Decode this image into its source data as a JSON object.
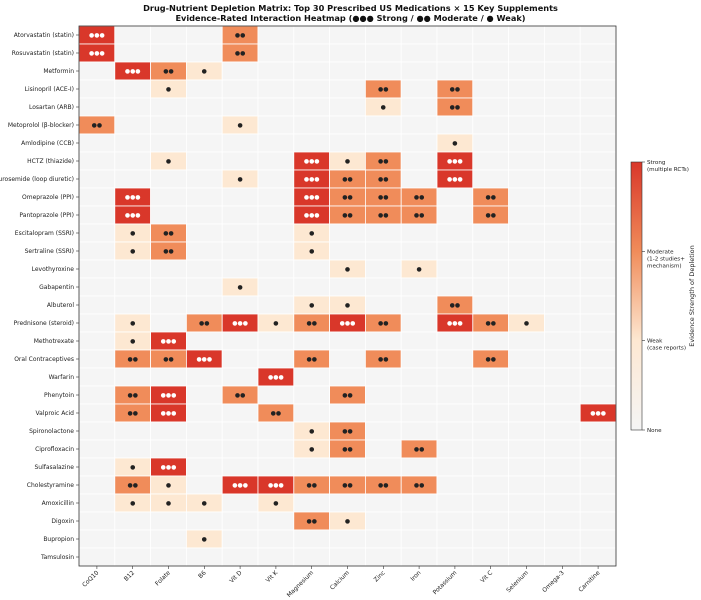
{
  "chart_data": {
    "type": "heatmap",
    "title": "Drug-Nutrient Depletion Matrix: Top 30 Prescribed US Medications × 15 Key Supplements",
    "subtitle": "Evidence-Rated Interaction Heatmap (●●● Strong / ●● Moderate / ● Weak)",
    "x_categories": [
      "CoQ10",
      "B12",
      "Folate",
      "B6",
      "Vit D",
      "Vit K",
      "Magnesium",
      "Calcium",
      "Zinc",
      "Iron",
      "Potassium",
      "Vit C",
      "Selenium",
      "Omega-3",
      "Carnitine"
    ],
    "y_categories": [
      "Atorvastatin (statin)",
      "Rosuvastatin (statin)",
      "Metformin",
      "Lisinopril (ACE-I)",
      "Losartan (ARB)",
      "Metoprolol (β-blocker)",
      "Amlodipine (CCB)",
      "HCTZ (thiazide)",
      "Furosemide (loop diuretic)",
      "Omeprazole (PPI)",
      "Pantoprazole (PPI)",
      "Escitalopram (SSRI)",
      "Sertraline (SSRI)",
      "Levothyroxine",
      "Gabapentin",
      "Albuterol",
      "Prednisone (steroid)",
      "Methotrexate",
      "Oral Contraceptives",
      "Warfarin",
      "Phenytoin",
      "Valproic Acid",
      "Spironolactone",
      "Ciprofloxacin",
      "Sulfasalazine",
      "Cholestyramine",
      "Amoxicillin",
      "Digoxin",
      "Bupropion",
      "Tamsulosin"
    ],
    "values": [
      [
        3,
        0,
        0,
        0,
        2,
        0,
        0,
        0,
        0,
        0,
        0,
        0,
        0,
        0,
        0
      ],
      [
        3,
        0,
        0,
        0,
        2,
        0,
        0,
        0,
        0,
        0,
        0,
        0,
        0,
        0,
        0
      ],
      [
        0,
        3,
        2,
        1,
        0,
        0,
        0,
        0,
        0,
        0,
        0,
        0,
        0,
        0,
        0
      ],
      [
        0,
        0,
        1,
        0,
        0,
        0,
        0,
        0,
        2,
        0,
        2,
        0,
        0,
        0,
        0
      ],
      [
        0,
        0,
        0,
        0,
        0,
        0,
        0,
        0,
        1,
        0,
        2,
        0,
        0,
        0,
        0
      ],
      [
        2,
        0,
        0,
        0,
        1,
        0,
        0,
        0,
        0,
        0,
        0,
        0,
        0,
        0,
        0
      ],
      [
        0,
        0,
        0,
        0,
        0,
        0,
        0,
        0,
        0,
        0,
        1,
        0,
        0,
        0,
        0
      ],
      [
        0,
        0,
        1,
        0,
        0,
        0,
        3,
        1,
        2,
        0,
        3,
        0,
        0,
        0,
        0
      ],
      [
        0,
        0,
        0,
        0,
        1,
        0,
        3,
        2,
        2,
        0,
        3,
        0,
        0,
        0,
        0
      ],
      [
        0,
        3,
        0,
        0,
        0,
        0,
        3,
        2,
        2,
        2,
        0,
        2,
        0,
        0,
        0
      ],
      [
        0,
        3,
        0,
        0,
        0,
        0,
        3,
        2,
        2,
        2,
        0,
        2,
        0,
        0,
        0
      ],
      [
        0,
        1,
        2,
        0,
        0,
        0,
        1,
        0,
        0,
        0,
        0,
        0,
        0,
        0,
        0
      ],
      [
        0,
        1,
        2,
        0,
        0,
        0,
        1,
        0,
        0,
        0,
        0,
        0,
        0,
        0,
        0
      ],
      [
        0,
        0,
        0,
        0,
        0,
        0,
        0,
        1,
        0,
        1,
        0,
        0,
        0,
        0,
        0
      ],
      [
        0,
        0,
        0,
        0,
        1,
        0,
        0,
        0,
        0,
        0,
        0,
        0,
        0,
        0,
        0
      ],
      [
        0,
        0,
        0,
        0,
        0,
        0,
        1,
        1,
        0,
        0,
        2,
        0,
        0,
        0,
        0
      ],
      [
        0,
        1,
        0,
        2,
        3,
        1,
        2,
        3,
        2,
        0,
        3,
        2,
        1,
        0,
        0
      ],
      [
        0,
        1,
        3,
        0,
        0,
        0,
        0,
        0,
        0,
        0,
        0,
        0,
        0,
        0,
        0
      ],
      [
        0,
        2,
        2,
        3,
        0,
        0,
        2,
        0,
        2,
        0,
        0,
        2,
        0,
        0,
        0
      ],
      [
        0,
        0,
        0,
        0,
        0,
        3,
        0,
        0,
        0,
        0,
        0,
        0,
        0,
        0,
        0
      ],
      [
        0,
        2,
        3,
        0,
        2,
        0,
        0,
        2,
        0,
        0,
        0,
        0,
        0,
        0,
        0
      ],
      [
        0,
        2,
        3,
        0,
        0,
        2,
        0,
        0,
        0,
        0,
        0,
        0,
        0,
        0,
        3
      ],
      [
        0,
        0,
        0,
        0,
        0,
        0,
        1,
        2,
        0,
        0,
        0,
        0,
        0,
        0,
        0
      ],
      [
        0,
        0,
        0,
        0,
        0,
        0,
        1,
        2,
        0,
        2,
        0,
        0,
        0,
        0,
        0
      ],
      [
        0,
        1,
        3,
        0,
        0,
        0,
        0,
        0,
        0,
        0,
        0,
        0,
        0,
        0,
        0
      ],
      [
        0,
        2,
        1,
        0,
        3,
        3,
        2,
        2,
        2,
        2,
        0,
        0,
        0,
        0,
        0
      ],
      [
        0,
        1,
        1,
        1,
        0,
        1,
        0,
        0,
        0,
        0,
        0,
        0,
        0,
        0,
        0
      ],
      [
        0,
        0,
        0,
        0,
        0,
        0,
        2,
        1,
        0,
        0,
        0,
        0,
        0,
        0,
        0
      ],
      [
        0,
        0,
        0,
        1,
        0,
        0,
        0,
        0,
        0,
        0,
        0,
        0,
        0,
        0,
        0
      ],
      [
        0,
        0,
        0,
        0,
        0,
        0,
        0,
        0,
        0,
        0,
        0,
        0,
        0,
        0,
        0
      ]
    ],
    "markers": {
      "1": "●",
      "2": "●●",
      "3": "●●●"
    },
    "colorscale": {
      "min": 0,
      "max": 3,
      "colors": {
        "0": "#f5f5f5",
        "1": "#fde8d2",
        "2": "#f08c5a",
        "3": "#d9372a"
      }
    },
    "colorbar": {
      "label": "Evidence Strength of Depletion",
      "ticks": [
        {
          "value": 3,
          "lines": [
            "Strong",
            "(multiple RCTs)"
          ]
        },
        {
          "value": 2,
          "lines": [
            "Moderate",
            "(1-2 studies+",
            "mechanism)"
          ]
        },
        {
          "value": 1,
          "lines": [
            "Weak",
            "(case reports)"
          ]
        },
        {
          "value": 0,
          "lines": [
            "None"
          ]
        }
      ]
    },
    "grid": false
  }
}
